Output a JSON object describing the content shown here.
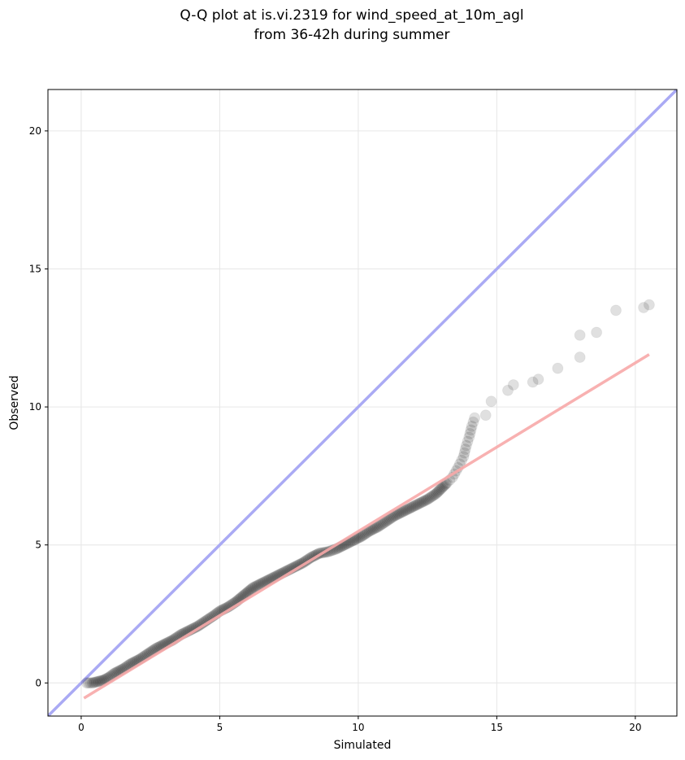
{
  "chart_data": {
    "type": "scatter",
    "title": "Q-Q plot at is.vi.2319 for wind_speed_at_10m_agl",
    "subtitle": "from 36-42h during summer",
    "xlabel": "Simulated",
    "ylabel": "Observed",
    "xlim": [
      -1.2,
      21.5
    ],
    "ylim": [
      -1.2,
      21.5
    ],
    "xticks": [
      0,
      5,
      10,
      15,
      20
    ],
    "yticks": [
      0,
      5,
      10,
      15,
      20
    ],
    "xtick_labels": [
      "0",
      "5",
      "10",
      "15",
      "20"
    ],
    "ytick_labels": [
      "0",
      "5",
      "10",
      "15",
      "20"
    ],
    "grid": true,
    "identity_line": {
      "x": [
        -1.2,
        21.5
      ],
      "y": [
        -1.2,
        21.5
      ],
      "color": "#aaaaf4"
    },
    "fit_line": {
      "x": [
        0.1,
        20.5
      ],
      "y": [
        -0.55,
        11.9
      ],
      "color": "#f7a8a8"
    },
    "quantile_points": {
      "x": [
        0.2,
        0.4,
        0.6,
        0.8,
        1.0,
        1.2,
        1.5,
        1.8,
        2.1,
        2.4,
        2.7,
        3.0,
        3.3,
        3.6,
        3.9,
        4.2,
        4.5,
        4.8,
        5.0,
        5.3,
        5.6,
        5.9,
        6.2,
        6.5,
        6.8,
        7.1,
        7.4,
        7.7,
        8.0,
        8.3,
        8.6,
        8.9,
        9.2,
        9.5,
        9.8,
        10.1,
        10.4,
        10.7,
        11.0,
        11.3,
        11.6,
        11.9,
        12.2,
        12.5,
        12.8,
        13.0,
        13.2,
        13.4,
        13.6,
        13.8,
        13.9,
        14.0,
        14.1,
        14.2,
        14.6,
        14.8,
        15.4,
        15.6,
        16.3,
        16.5,
        17.2,
        18.0,
        18.0,
        18.6,
        19.3,
        20.3,
        20.5
      ],
      "y": [
        0.0,
        0.0,
        0.05,
        0.1,
        0.2,
        0.35,
        0.5,
        0.7,
        0.85,
        1.05,
        1.25,
        1.4,
        1.55,
        1.75,
        1.9,
        2.05,
        2.25,
        2.45,
        2.6,
        2.75,
        2.95,
        3.2,
        3.45,
        3.6,
        3.75,
        3.9,
        4.05,
        4.2,
        4.35,
        4.55,
        4.7,
        4.75,
        4.85,
        5.0,
        5.15,
        5.3,
        5.5,
        5.65,
        5.85,
        6.05,
        6.2,
        6.35,
        6.5,
        6.65,
        6.85,
        7.05,
        7.25,
        7.45,
        7.8,
        8.2,
        8.6,
        8.9,
        9.3,
        9.6,
        9.7,
        10.2,
        10.6,
        10.8,
        10.9,
        11.0,
        11.4,
        11.8,
        12.6,
        12.7,
        13.5,
        13.6,
        13.7
      ],
      "color": "#000000"
    }
  }
}
